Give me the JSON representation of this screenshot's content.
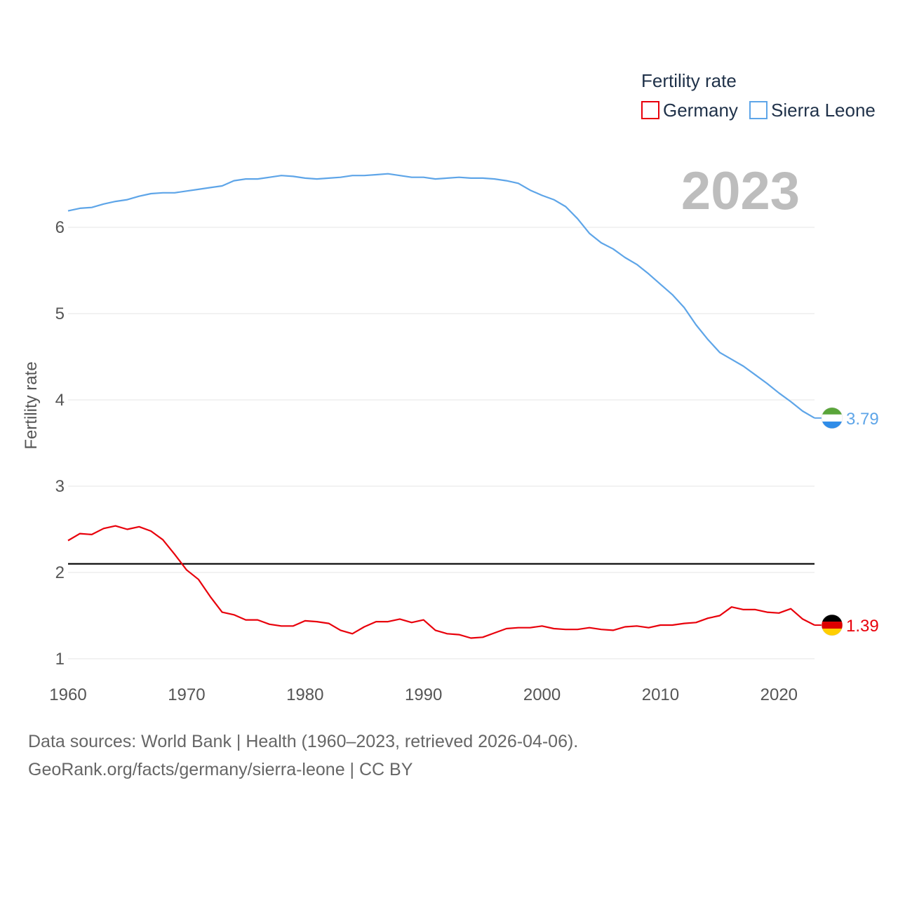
{
  "chart_data": {
    "type": "line",
    "title": "Fertility rate",
    "xlabel": "",
    "ylabel": "Fertility rate",
    "xlim": [
      1960,
      2023
    ],
    "ylim": [
      0.9,
      6.95
    ],
    "x_ticks": [
      1960,
      1970,
      1980,
      1990,
      2000,
      2010,
      2020
    ],
    "y_ticks": [
      1,
      2,
      3,
      4,
      5,
      6
    ],
    "grid": true,
    "legend_position": "top-right",
    "current_year": "2023",
    "reference_line": {
      "value": 2.1
    },
    "x": [
      1960,
      1961,
      1962,
      1963,
      1964,
      1965,
      1966,
      1967,
      1968,
      1969,
      1970,
      1971,
      1972,
      1973,
      1974,
      1975,
      1976,
      1977,
      1978,
      1979,
      1980,
      1981,
      1982,
      1983,
      1984,
      1985,
      1986,
      1987,
      1988,
      1989,
      1990,
      1991,
      1992,
      1993,
      1994,
      1995,
      1996,
      1997,
      1998,
      1999,
      2000,
      2001,
      2002,
      2003,
      2004,
      2005,
      2006,
      2007,
      2008,
      2009,
      2010,
      2011,
      2012,
      2013,
      2014,
      2015,
      2016,
      2017,
      2018,
      2019,
      2020,
      2021,
      2022,
      2023
    ],
    "series": [
      {
        "name": "Germany",
        "color": "#e8000b",
        "end_label": "1.39",
        "flag": "germany-flag",
        "values": [
          2.37,
          2.45,
          2.44,
          2.51,
          2.54,
          2.5,
          2.53,
          2.48,
          2.38,
          2.21,
          2.03,
          1.92,
          1.72,
          1.54,
          1.51,
          1.45,
          1.45,
          1.4,
          1.38,
          1.38,
          1.44,
          1.43,
          1.41,
          1.33,
          1.29,
          1.37,
          1.43,
          1.43,
          1.46,
          1.42,
          1.45,
          1.33,
          1.29,
          1.28,
          1.24,
          1.25,
          1.3,
          1.35,
          1.36,
          1.36,
          1.38,
          1.35,
          1.34,
          1.34,
          1.36,
          1.34,
          1.33,
          1.37,
          1.38,
          1.36,
          1.39,
          1.39,
          1.41,
          1.42,
          1.47,
          1.5,
          1.6,
          1.57,
          1.57,
          1.54,
          1.53,
          1.58,
          1.46,
          1.39
        ]
      },
      {
        "name": "Sierra Leone",
        "color": "#5ea5e8",
        "end_label": "3.79",
        "flag": "sierra-leone-flag",
        "values": [
          6.19,
          6.22,
          6.23,
          6.27,
          6.3,
          6.32,
          6.36,
          6.39,
          6.4,
          6.4,
          6.42,
          6.44,
          6.46,
          6.48,
          6.54,
          6.56,
          6.56,
          6.58,
          6.6,
          6.59,
          6.57,
          6.56,
          6.57,
          6.58,
          6.6,
          6.6,
          6.61,
          6.62,
          6.6,
          6.58,
          6.58,
          6.56,
          6.57,
          6.58,
          6.57,
          6.57,
          6.56,
          6.54,
          6.51,
          6.43,
          6.37,
          6.32,
          6.24,
          6.1,
          5.93,
          5.82,
          5.75,
          5.65,
          5.57,
          5.46,
          5.34,
          5.22,
          5.07,
          4.87,
          4.7,
          4.55,
          4.47,
          4.39,
          4.29,
          4.19,
          4.08,
          3.98,
          3.87,
          3.79
        ]
      }
    ]
  },
  "footer": {
    "line1": "Data sources: World Bank | Health (1960–2023, retrieved 2026-04-06).",
    "line2": "GeoRank.org/facts/germany/sierra-leone | CC BY"
  }
}
